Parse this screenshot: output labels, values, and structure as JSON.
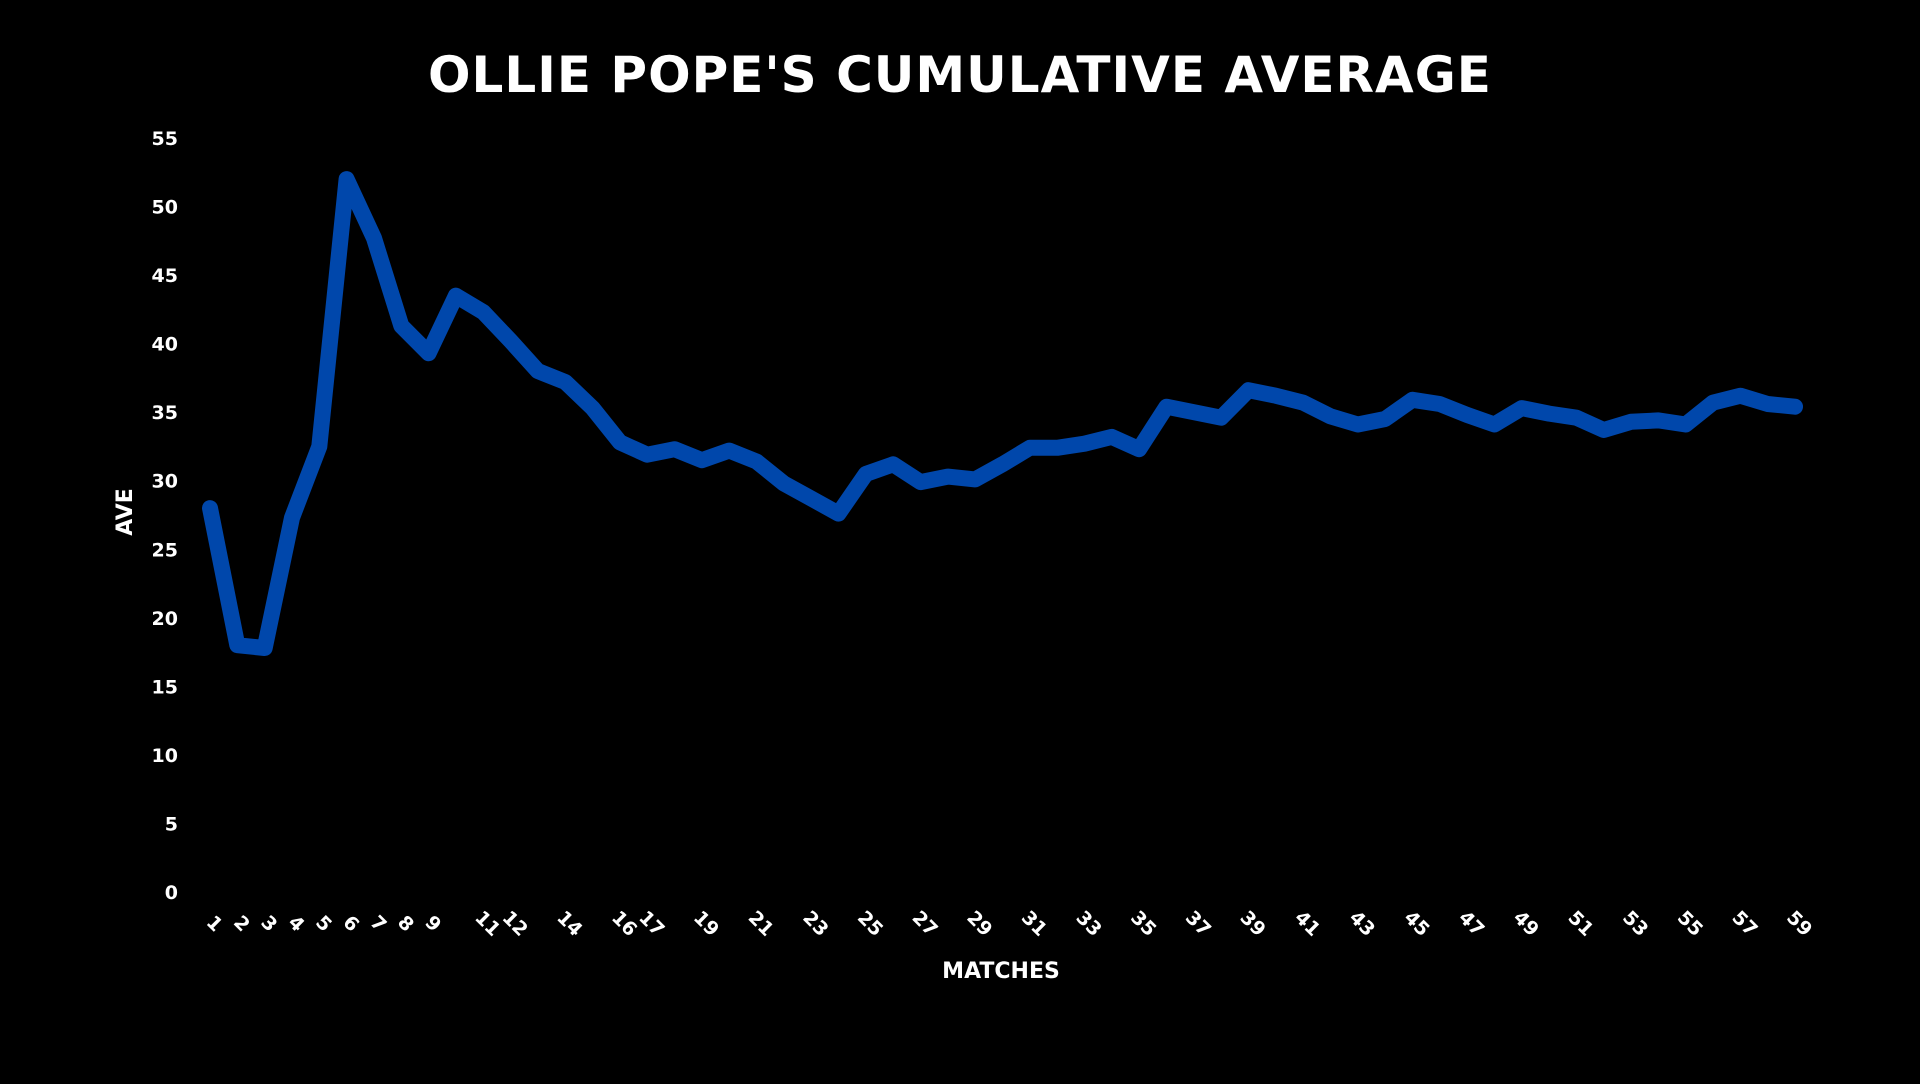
{
  "chart_data": {
    "type": "line",
    "title": "OLLIE POPE'S CUMULATIVE AVERAGE",
    "xlabel": "MATCHES",
    "ylabel": "AVE",
    "ylim": [
      0,
      55
    ],
    "yticks": [
      0,
      5,
      10,
      15,
      20,
      25,
      30,
      35,
      40,
      45,
      50,
      55
    ],
    "xticks": [
      1,
      2,
      3,
      4,
      5,
      6,
      7,
      8,
      9,
      11,
      12,
      14,
      16,
      17,
      19,
      21,
      23,
      25,
      27,
      29,
      31,
      33,
      35,
      37,
      39,
      41,
      43,
      45,
      47,
      49,
      51,
      53,
      55,
      57,
      59
    ],
    "grid": false,
    "line_color": "#0047AB",
    "background_color": "#000000",
    "text_color": "#FFFFFF",
    "x": [
      1,
      2,
      3,
      4,
      5,
      6,
      7,
      8,
      9,
      10,
      11,
      12,
      13,
      14,
      15,
      16,
      17,
      18,
      19,
      20,
      21,
      22,
      23,
      24,
      25,
      26,
      27,
      28,
      29,
      30,
      31,
      32,
      33,
      34,
      35,
      36,
      37,
      38,
      39,
      40,
      41,
      42,
      43,
      44,
      45,
      46,
      47,
      48,
      49,
      50,
      51,
      52,
      53,
      54,
      55,
      56,
      57,
      58,
      59
    ],
    "series": [
      {
        "values": [
          28.0,
          18.0,
          17.8,
          27.3,
          32.5,
          52.0,
          47.7,
          41.3,
          39.3,
          43.5,
          42.3,
          40.2,
          38.0,
          37.2,
          35.3,
          32.8,
          31.9,
          32.3,
          31.5,
          32.2,
          31.4,
          29.8,
          28.7,
          27.6,
          30.5,
          31.2,
          29.9,
          30.3,
          30.1,
          31.2,
          32.4,
          32.4,
          32.7,
          33.2,
          32.3,
          35.4,
          35.0,
          34.6,
          36.6,
          36.2,
          35.7,
          34.7,
          34.1,
          34.5,
          35.9,
          35.6,
          34.8,
          34.1,
          35.3,
          34.9,
          34.6,
          33.7,
          34.3,
          34.4,
          34.1,
          35.7,
          36.2,
          35.6,
          35.4
        ]
      }
    ]
  }
}
